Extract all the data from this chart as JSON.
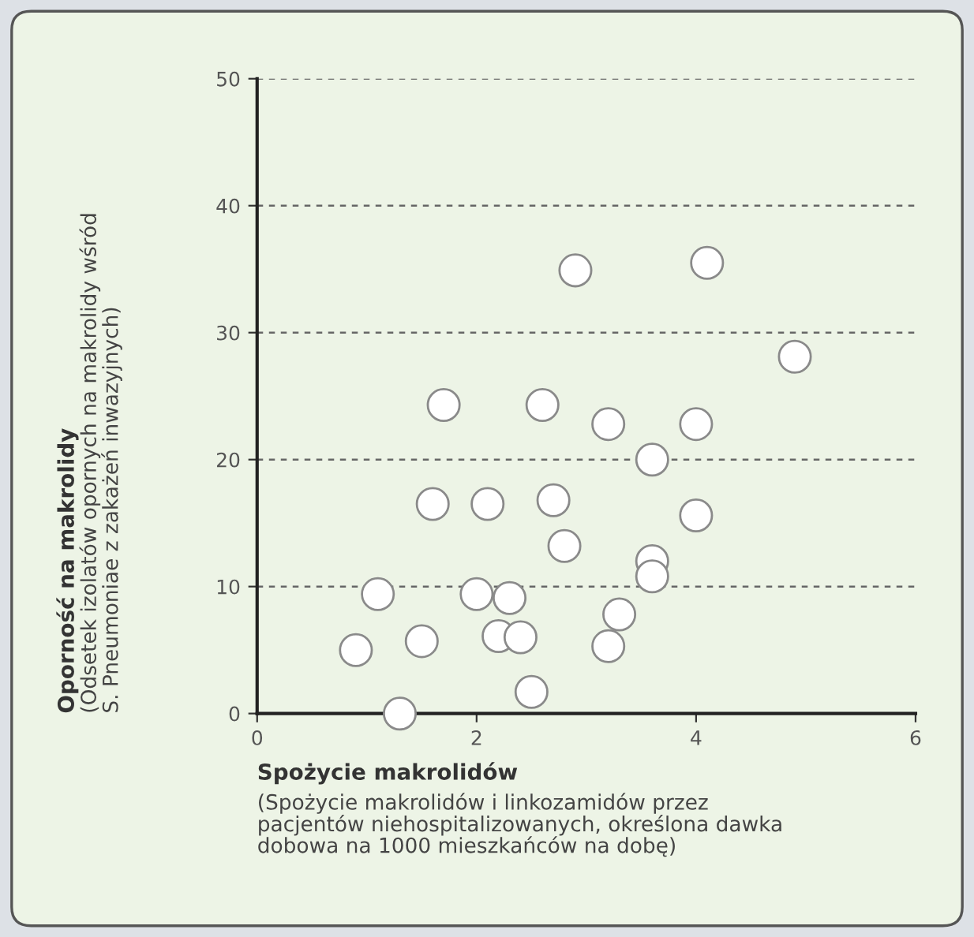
{
  "chart_data": {
    "type": "scatter",
    "xlabel": "Spożycie makrolidów",
    "annotations": [
      "Oporność na makrolidy",
      "(Spożycie makrolidów i linkozamidów przez\npacjentów niehospitalizowanych, określona dawka\ndobowa na 1000 mieszkańców na dobę)",
      "(Odsetek izolatów opornych na makrolidy wśród\nS. Pneumoniae z zakażeń inwazyjnych)"
    ],
    "x": [
      1.7,
      2.6,
      3.2,
      4.0,
      3.6,
      1.6,
      2.1,
      2.7,
      4.0,
      2.8,
      3.6,
      3.6,
      1.1,
      2.0,
      2.3,
      3.3,
      0.9,
      1.5,
      2.2,
      2.4,
      3.2,
      2.5,
      1.3,
      2.9,
      4.1,
      4.9
    ],
    "values": [
      24.3,
      24.3,
      22.8,
      22.8,
      20.0,
      16.5,
      16.5,
      16.8,
      15.6,
      13.2,
      12.0,
      10.8,
      9.4,
      9.4,
      9.1,
      7.8,
      5.0,
      5.7,
      6.1,
      6.0,
      5.3,
      1.7,
      0,
      34.9,
      35.5,
      28.1
    ],
    "color": "#ffffff",
    "marker": "circle",
    "xlim": [
      0,
      6
    ],
    "xticks": [
      0,
      2,
      4,
      6
    ],
    "ylim": [
      0,
      50
    ],
    "yticks": [
      0,
      10,
      20,
      30,
      40,
      50
    ],
    "grid": "y"
  }
}
